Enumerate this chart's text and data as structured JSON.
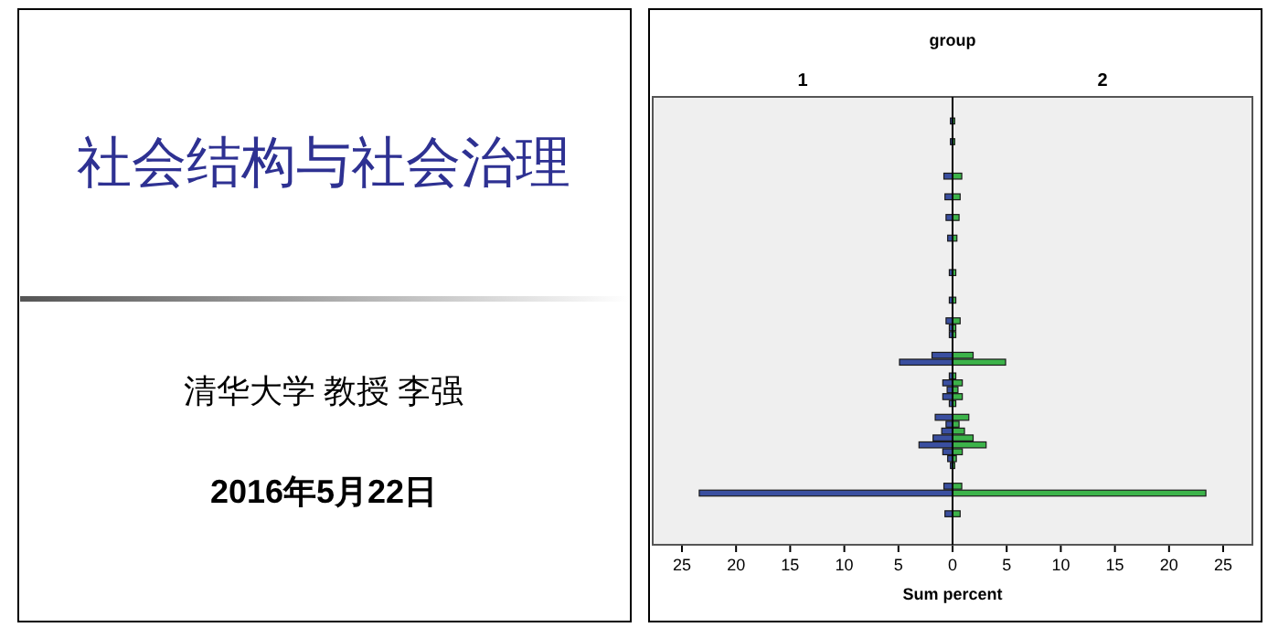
{
  "chart_data": [
    {
      "type": "other",
      "title": "社会结构与社会治理",
      "annotations": [
        "清华大学 教授 李强",
        "2016年5月22日"
      ]
    },
    {
      "type": "bar",
      "orientation": "horizontal",
      "title": "group",
      "subtitle": "1",
      "tick_labels": "x",
      "color": "#3a4fa0",
      "categories": [
        null,
        null,
        null,
        null,
        null,
        null,
        null,
        null,
        null,
        null,
        null,
        null,
        null,
        null,
        null,
        null,
        null,
        null,
        null,
        null,
        null,
        null,
        null,
        null,
        null,
        null,
        null,
        null,
        null,
        null,
        null,
        null,
        null,
        null,
        null,
        null,
        null,
        null,
        null,
        null,
        null,
        null,
        null,
        null,
        null,
        null,
        null,
        null,
        null,
        null,
        null,
        null,
        null,
        null,
        null,
        null,
        null,
        null,
        null,
        null,
        null,
        null,
        null,
        null,
        null
      ],
      "values": [
        null,
        null,
        null,
        0.2,
        null,
        null,
        0.2,
        null,
        null,
        null,
        null,
        0.8,
        null,
        null,
        0.7,
        null,
        null,
        0.6,
        null,
        null,
        0.45,
        null,
        null,
        null,
        null,
        0.3,
        null,
        null,
        null,
        0.3,
        null,
        null,
        0.6,
        0.3,
        0.3,
        null,
        null,
        1.9,
        4.9,
        null,
        0.3,
        0.9,
        0.5,
        0.9,
        0.3,
        null,
        1.6,
        0.6,
        1.0,
        1.8,
        3.1,
        0.9,
        0.45,
        0.2,
        null,
        null,
        0.8,
        23.4,
        null,
        null,
        0.7,
        null,
        null,
        null,
        null
      ],
      "xlim": [
        27.7,
        0
      ],
      "xticks": [
        25,
        20,
        15,
        10,
        5,
        0
      ]
    },
    {
      "type": "bar",
      "orientation": "horizontal",
      "subtitle": "2",
      "xlabel": "Sum percent",
      "tick_labels": "x",
      "color": "#3cb34a",
      "categories": [
        null,
        null,
        null,
        null,
        null,
        null,
        null,
        null,
        null,
        null,
        null,
        null,
        null,
        null,
        null,
        null,
        null,
        null,
        null,
        null,
        null,
        null,
        null,
        null,
        null,
        null,
        null,
        null,
        null,
        null,
        null,
        null,
        null,
        null,
        null,
        null,
        null,
        null,
        null,
        null,
        null,
        null,
        null,
        null,
        null,
        null,
        null,
        null,
        null,
        null,
        null,
        null,
        null,
        null,
        null,
        null,
        null,
        null,
        null,
        null,
        null,
        null,
        null,
        null,
        null
      ],
      "values": [
        null,
        null,
        null,
        0.2,
        null,
        null,
        0.2,
        null,
        null,
        null,
        null,
        0.85,
        null,
        null,
        0.7,
        null,
        null,
        0.6,
        null,
        null,
        0.4,
        null,
        null,
        null,
        null,
        0.3,
        null,
        null,
        null,
        0.3,
        null,
        null,
        0.7,
        0.3,
        0.3,
        null,
        null,
        1.9,
        4.9,
        null,
        0.3,
        0.9,
        0.5,
        0.9,
        0.3,
        null,
        1.5,
        0.6,
        1.1,
        1.9,
        3.1,
        0.9,
        0.35,
        0.2,
        null,
        null,
        0.85,
        23.4,
        null,
        null,
        0.7,
        null,
        null,
        null,
        null
      ],
      "xlim": [
        0,
        27.7
      ],
      "xticks": [
        5,
        10,
        15,
        20,
        25
      ]
    }
  ]
}
